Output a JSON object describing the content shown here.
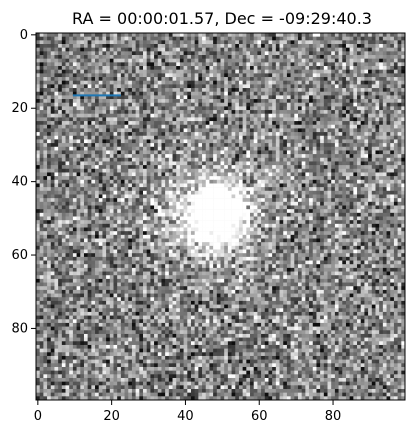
{
  "title": "RA = 00:00:01.57, Dec = -09:29:40.3",
  "image": {
    "description_type": "noisy grayscale astronomical cutout",
    "grid_size": 100,
    "source": {
      "center_x": 48,
      "center_y": 49,
      "radius": 6
    },
    "colormap": "gray"
  },
  "overlay_line": {
    "x0": 10,
    "x1": 23,
    "y": 17,
    "color": "#1f77b4"
  },
  "axes": {
    "x_ticks": [
      "0",
      "20",
      "40",
      "60",
      "80"
    ],
    "x_tick_values": [
      0,
      20,
      40,
      60,
      80
    ],
    "y_ticks": [
      "0",
      "20",
      "40",
      "60",
      "80"
    ],
    "y_tick_values": [
      0,
      20,
      40,
      60,
      80
    ],
    "x_range": [
      0,
      100
    ],
    "y_range": [
      0,
      100
    ]
  }
}
